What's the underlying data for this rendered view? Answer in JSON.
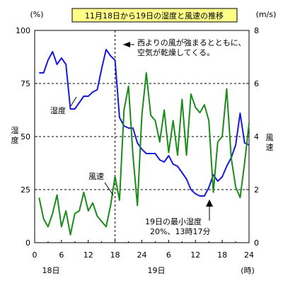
{
  "chart_data": {
    "type": "line",
    "title": "11月18日から19日の湿度と風速の推移",
    "left_unit": "(%)",
    "right_unit": "(m/s)",
    "left_axis_label": "湿度",
    "right_axis_label": "風速",
    "x_unit": "(時)",
    "x_ticks": [
      "0",
      "6",
      "12",
      "18",
      "24",
      "6",
      "12",
      "18",
      "24"
    ],
    "day_labels": [
      "18日",
      "19日"
    ],
    "y_left_ticks": [
      "0",
      "25",
      "50",
      "75",
      "100"
    ],
    "y_right_ticks": [
      "0",
      "2",
      "4",
      "6",
      "8"
    ],
    "x_range": [
      0,
      48
    ],
    "y_left_range": [
      0,
      100
    ],
    "y_right_range": [
      0,
      8
    ],
    "dashed_grid": [
      25,
      50,
      75
    ],
    "colors": {
      "humidity": "#1a1adb",
      "wind": "#1a8c1a"
    },
    "series": [
      {
        "name": "湿度",
        "axis": "left",
        "x": [
          1,
          2,
          3,
          4,
          5,
          6,
          7,
          8,
          9,
          10,
          11,
          12,
          13,
          14,
          15,
          16,
          17,
          18,
          19,
          20,
          21,
          22,
          23,
          24,
          25,
          26,
          27,
          28,
          29,
          30,
          31,
          32,
          33,
          34,
          35,
          36,
          37,
          38,
          39,
          40,
          41,
          42,
          43,
          44,
          45,
          46,
          47,
          48
        ],
        "values": [
          80,
          80,
          86,
          90,
          84,
          87,
          84,
          63,
          63,
          66,
          69,
          69,
          71,
          72,
          82,
          91,
          88,
          86,
          59,
          55,
          54,
          54,
          47,
          44,
          42,
          42,
          42,
          39,
          38,
          41,
          37,
          36,
          33,
          30,
          25,
          23,
          22,
          22,
          26,
          32,
          29,
          31,
          36,
          40,
          46,
          61,
          47,
          46
        ]
      },
      {
        "name": "風速",
        "axis": "right",
        "x": [
          1,
          2,
          3,
          4,
          5,
          6,
          7,
          8,
          9,
          10,
          11,
          12,
          13,
          14,
          15,
          16,
          17,
          18,
          19,
          20,
          21,
          22,
          23,
          24,
          25,
          26,
          27,
          28,
          29,
          30,
          31,
          32,
          33,
          34,
          35,
          36,
          37,
          38,
          39,
          40,
          41,
          42,
          43,
          44,
          45,
          46,
          47,
          48
        ],
        "values": [
          1.7,
          0.9,
          0.6,
          1.1,
          1.8,
          0.6,
          1.2,
          0.3,
          1.1,
          1.2,
          1.9,
          1.2,
          1.5,
          1.0,
          0.8,
          0.6,
          1.4,
          2.5,
          1.6,
          5.0,
          5.9,
          3.3,
          1.4,
          4.8,
          6.4,
          4.8,
          4.6,
          3.8,
          5.0,
          3.4,
          4.6,
          3.3,
          5.4,
          3.3,
          5.6,
          5.1,
          4.9,
          5.2,
          4.6,
          1.9,
          3.8,
          4.0,
          5.8,
          3.2,
          2.1,
          1.7,
          3.0,
          4.5
        ]
      }
    ],
    "annotations": [
      {
        "text": "西よりの風が強まるとともに、",
        "line": 1
      },
      {
        "text": "空気が乾燥してくる。",
        "line": 2
      },
      {
        "text": "19日の最小湿度",
        "line": 3
      },
      {
        "text": "20%、13時17分",
        "line": 4
      }
    ],
    "series_labels": {
      "humidity": "湿度",
      "wind": "風速"
    },
    "grid": "dashed at 25/50/75, vertical dashed at 18h",
    "legend": "none"
  }
}
